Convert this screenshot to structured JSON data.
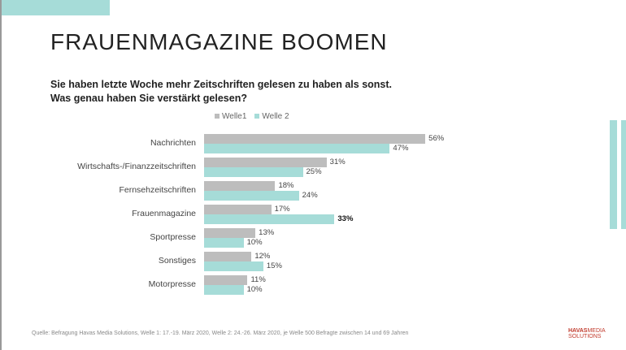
{
  "title": "FRAUENMAGAZINE BOOMEN",
  "question": "Sie haben letzte Woche mehr Zeitschriften gelesen zu haben als sonst. Was genau haben Sie verstärkt gelesen?",
  "source": "Quelle: Befragung Havas Media Solutions, Welle 1: 17.-19. März 2020, Welle 2: 24.-26. März 2020, je Welle 500 Befragte zwischen 14 und 69 Jahren",
  "logo": {
    "line1": "HAVAS",
    "line1b": "MEDIA",
    "line2": "SOLUTIONS"
  },
  "colors": {
    "welle1": "#bdbdbd",
    "welle2": "#a6dcd8"
  },
  "chart_data": {
    "type": "bar",
    "orientation": "horizontal",
    "title": "Sie haben letzte Woche mehr Zeitschriften gelesen zu haben als sonst. Was genau haben Sie verstärkt gelesen?",
    "legend_position": "top",
    "categories": [
      "Nachrichten",
      "Wirtschafts-/Finanzzeitschriften",
      "Fernsehzeitschriften",
      "Frauenmagazine",
      "Sportpresse",
      "Sonstiges",
      "Motorpresse"
    ],
    "series": [
      {
        "name": "Welle1",
        "values": [
          56,
          31,
          18,
          17,
          13,
          12,
          11
        ],
        "labels": [
          "56%",
          "31%",
          "18%",
          "17%",
          "13%",
          "12%",
          "11%"
        ]
      },
      {
        "name": "Welle 2",
        "values": [
          47,
          25,
          24,
          33,
          10,
          15,
          10
        ],
        "labels": [
          "47%",
          "25%",
          "24%",
          "33%",
          "10%",
          "15%",
          "10%"
        ]
      }
    ],
    "highlight": {
      "category": "Frauenmagazine",
      "series": "Welle 2"
    },
    "unit": "%"
  }
}
